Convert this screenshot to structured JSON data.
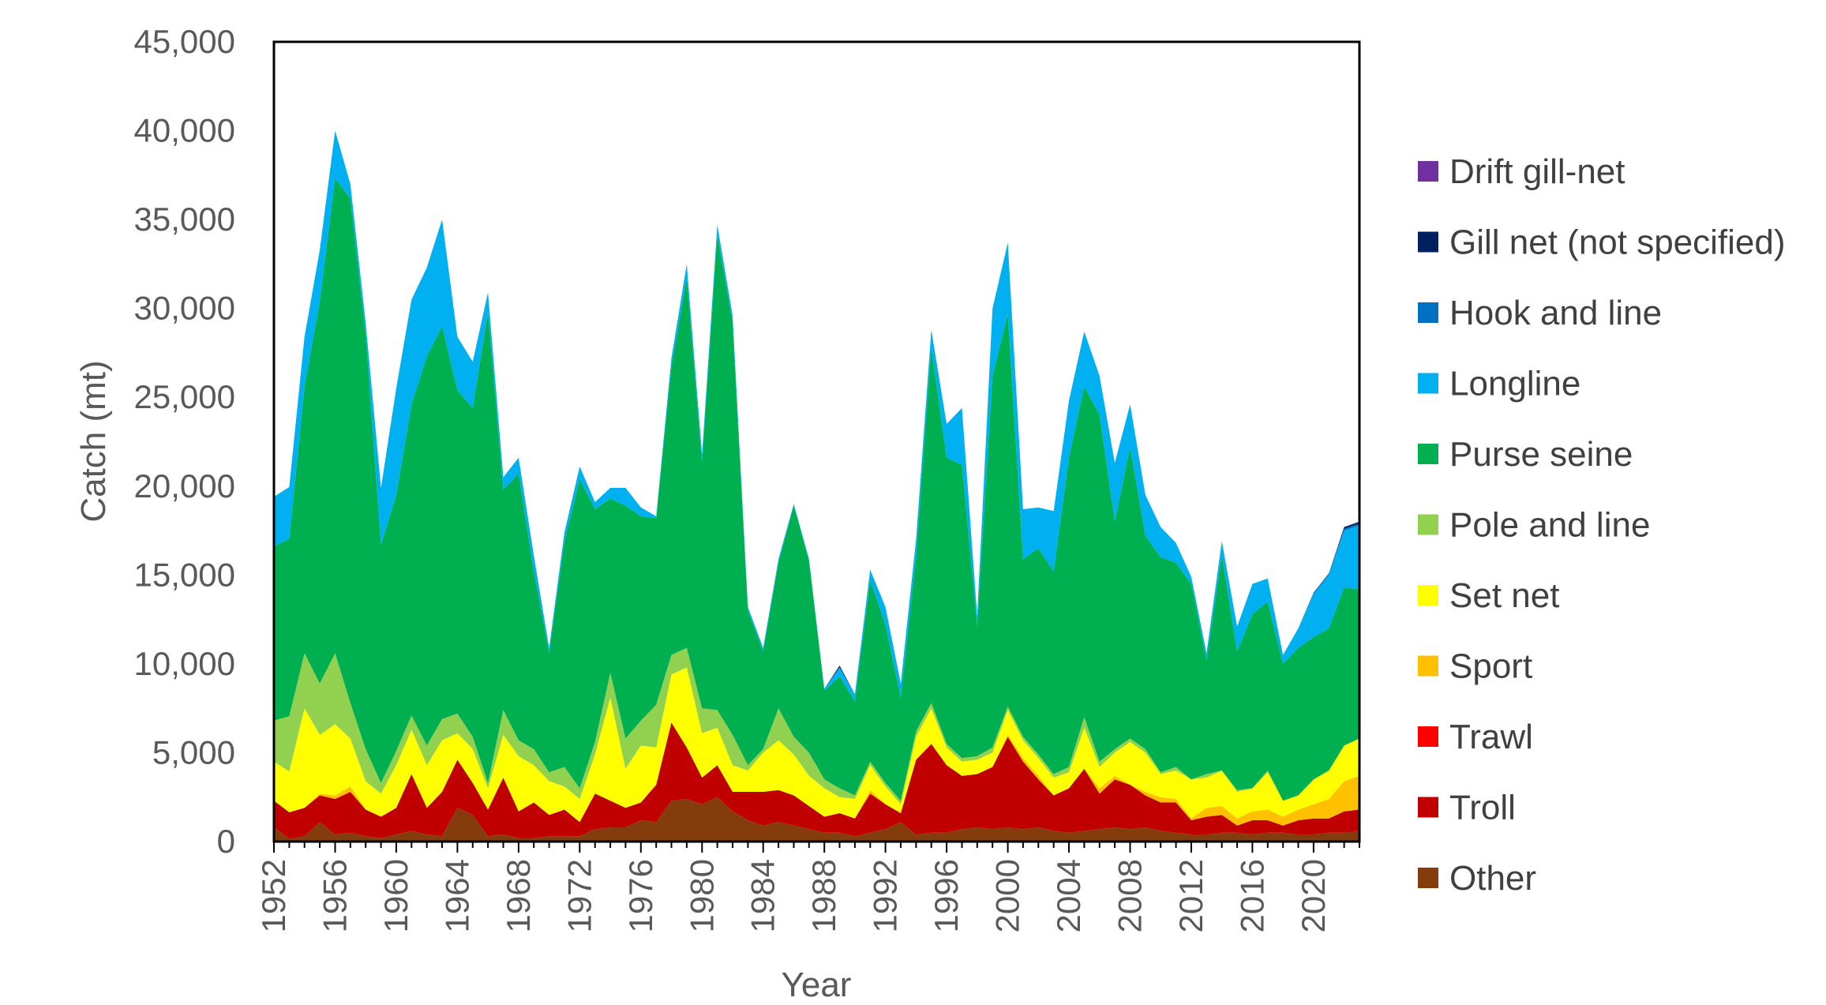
{
  "chart_data": {
    "type": "area",
    "stacked": true,
    "title": "",
    "xlabel": "Year",
    "ylabel": "Catch (mt)",
    "ylim": [
      0,
      45000
    ],
    "yticks": [
      0,
      5000,
      10000,
      15000,
      20000,
      25000,
      30000,
      35000,
      40000,
      45000
    ],
    "ytick_labels": [
      "0",
      "5,000",
      "10,000",
      "15,000",
      "20,000",
      "25,000",
      "30,000",
      "35,000",
      "40,000",
      "45,000"
    ],
    "xlim": [
      1952,
      2023
    ],
    "xticks": [
      1952,
      1956,
      1960,
      1964,
      1968,
      1972,
      1976,
      1980,
      1984,
      1988,
      1992,
      1996,
      2000,
      2004,
      2008,
      2012,
      2016,
      2020
    ],
    "xtick_labels": [
      "1952",
      "1956",
      "1960",
      "1964",
      "1968",
      "1972",
      "1976",
      "1980",
      "1984",
      "1988",
      "1992",
      "1996",
      "2000",
      "2004",
      "2008",
      "2012",
      "2016",
      "2020"
    ],
    "grid": false,
    "legend_position": "right",
    "x": [
      1952,
      1953,
      1954,
      1955,
      1956,
      1957,
      1958,
      1959,
      1960,
      1961,
      1962,
      1963,
      1964,
      1965,
      1966,
      1967,
      1968,
      1969,
      1970,
      1971,
      1972,
      1973,
      1974,
      1975,
      1976,
      1977,
      1978,
      1979,
      1980,
      1981,
      1982,
      1983,
      1984,
      1985,
      1986,
      1987,
      1988,
      1989,
      1990,
      1991,
      1992,
      1993,
      1994,
      1995,
      1996,
      1997,
      1998,
      1999,
      2000,
      2001,
      2002,
      2003,
      2004,
      2005,
      2006,
      2007,
      2008,
      2009,
      2010,
      2011,
      2012,
      2013,
      2014,
      2015,
      2016,
      2017,
      2018,
      2019,
      2020,
      2021,
      2022,
      2023
    ],
    "series": [
      {
        "name": "Other",
        "color": "#843C0C",
        "values": [
          800,
          150,
          300,
          1100,
          400,
          500,
          300,
          200,
          400,
          600,
          400,
          300,
          1900,
          1500,
          300,
          400,
          200,
          200,
          300,
          300,
          300,
          700,
          800,
          800,
          1200,
          1100,
          2300,
          2400,
          2100,
          2500,
          1700,
          1200,
          900,
          1100,
          900,
          700,
          500,
          500,
          300,
          500,
          700,
          1100,
          400,
          500,
          500,
          700,
          800,
          700,
          800,
          700,
          800,
          600,
          500,
          600,
          700,
          800,
          700,
          800,
          600,
          500,
          400,
          400,
          500,
          500,
          400,
          500,
          500,
          400,
          400,
          500,
          500,
          600
        ]
      },
      {
        "name": "Troll",
        "color": "#C00000",
        "values": [
          1500,
          1500,
          1600,
          1500,
          2000,
          2300,
          1500,
          1200,
          1500,
          3200,
          1500,
          2500,
          2700,
          1800,
          1500,
          3200,
          1500,
          2000,
          1200,
          1500,
          800,
          2000,
          1500,
          1100,
          1000,
          2100,
          4400,
          2900,
          1500,
          1800,
          1100,
          1600,
          1900,
          1800,
          1700,
          1300,
          900,
          1100,
          1000,
          2200,
          1400,
          500,
          4200,
          5000,
          3800,
          3000,
          3000,
          3500,
          5100,
          3800,
          2700,
          2000,
          2500,
          3500,
          2000,
          2700,
          2500,
          1800,
          1600,
          1700,
          800,
          1000,
          1000,
          400,
          800,
          700,
          400,
          800,
          900,
          800,
          1200,
          1200
        ]
      },
      {
        "name": "Trawl",
        "color": "#FF0000",
        "values": [
          0,
          0,
          0,
          0,
          0,
          0,
          0,
          0,
          0,
          0,
          0,
          0,
          0,
          0,
          0,
          0,
          0,
          0,
          0,
          0,
          0,
          0,
          0,
          0,
          0,
          0,
          0,
          0,
          0,
          0,
          0,
          0,
          0,
          0,
          0,
          0,
          0,
          0,
          0,
          0,
          0,
          0,
          0,
          0,
          0,
          0,
          0,
          0,
          0,
          0,
          0,
          0,
          0,
          0,
          0,
          0,
          0,
          0,
          0,
          0,
          0,
          0,
          0,
          0,
          0,
          0,
          0,
          0,
          0,
          0,
          0,
          0
        ]
      },
      {
        "name": "Sport",
        "color": "#FFC000",
        "values": [
          0,
          0,
          0,
          100,
          200,
          300,
          0,
          0,
          0,
          0,
          0,
          0,
          0,
          0,
          0,
          0,
          0,
          0,
          0,
          0,
          0,
          0,
          0,
          0,
          0,
          0,
          0,
          0,
          0,
          0,
          0,
          0,
          0,
          0,
          0,
          0,
          0,
          0,
          0,
          200,
          0,
          0,
          0,
          0,
          0,
          0,
          0,
          0,
          100,
          200,
          200,
          0,
          0,
          0,
          300,
          200,
          0,
          200,
          300,
          200,
          100,
          500,
          500,
          400,
          500,
          600,
          500,
          600,
          800,
          1100,
          1700,
          1900
        ]
      },
      {
        "name": "Set net",
        "color": "#FFFF00",
        "values": [
          2200,
          2300,
          5600,
          3300,
          4000,
          2700,
          1600,
          1300,
          2400,
          2500,
          2400,
          2900,
          1500,
          1900,
          1200,
          2400,
          3100,
          2100,
          1900,
          1300,
          1300,
          2200,
          5800,
          2200,
          3200,
          2100,
          2700,
          4500,
          2500,
          2100,
          1500,
          1200,
          2200,
          2800,
          2300,
          1700,
          1600,
          900,
          1100,
          1400,
          1000,
          500,
          1300,
          2000,
          1000,
          800,
          800,
          800,
          1400,
          1000,
          1000,
          1000,
          900,
          2300,
          1200,
          1300,
          2400,
          2200,
          1300,
          1600,
          2200,
          1700,
          2000,
          1500,
          1300,
          2100,
          900,
          800,
          1400,
          1600,
          2000,
          2100
        ]
      },
      {
        "name": "Pole and line",
        "color": "#92D050",
        "values": [
          2300,
          3100,
          3100,
          2900,
          4000,
          2000,
          1800,
          600,
          800,
          800,
          1100,
          1200,
          1100,
          700,
          300,
          1400,
          900,
          900,
          500,
          1100,
          600,
          700,
          1400,
          1700,
          1400,
          2400,
          1100,
          1100,
          1400,
          1000,
          1700,
          300,
          200,
          1800,
          1000,
          1300,
          500,
          500,
          200,
          200,
          200,
          200,
          300,
          300,
          200,
          200,
          200,
          300,
          200,
          200,
          200,
          200,
          300,
          600,
          300,
          200,
          200,
          200,
          100,
          200,
          0,
          200,
          0,
          100,
          0,
          100,
          0,
          0,
          0,
          0,
          0,
          0
        ]
      },
      {
        "name": "Purse seine",
        "color": "#00B050",
        "values": [
          9800,
          10000,
          15000,
          21500,
          26700,
          28400,
          23300,
          13400,
          14400,
          17500,
          21900,
          22100,
          18200,
          18500,
          26500,
          12400,
          15000,
          10000,
          6700,
          12700,
          17400,
          13100,
          9800,
          13100,
          11500,
          10500,
          16200,
          20800,
          13800,
          26700,
          23200,
          8700,
          5500,
          8200,
          13000,
          10800,
          5000,
          6300,
          5300,
          10200,
          8900,
          5800,
          9800,
          20000,
          16100,
          16500,
          7300,
          20900,
          22100,
          10000,
          11600,
          11400,
          17400,
          18600,
          19500,
          12800,
          16400,
          12000,
          12100,
          11500,
          11000,
          6400,
          12100,
          7800,
          9800,
          9500,
          7700,
          8300,
          8000,
          8000,
          8900,
          8400
        ]
      },
      {
        "name": "Longline",
        "color": "#00B0F0",
        "values": [
          2800,
          2900,
          2800,
          2900,
          2700,
          800,
          700,
          3200,
          6000,
          5900,
          5000,
          6000,
          3000,
          2600,
          1100,
          700,
          900,
          900,
          300,
          500,
          700,
          400,
          600,
          1000,
          500,
          100,
          500,
          800,
          500,
          600,
          400,
          200,
          200,
          200,
          100,
          100,
          100,
          500,
          400,
          600,
          1000,
          800,
          1000,
          1000,
          1900,
          3200,
          600,
          3800,
          4000,
          2800,
          2300,
          3400,
          3200,
          3100,
          2200,
          3300,
          2400,
          2300,
          1700,
          1100,
          400,
          400,
          800,
          1400,
          1700,
          1300,
          500,
          1100,
          2400,
          3000,
          3200,
          3600
        ]
      },
      {
        "name": "Hook and line",
        "color": "#0070C0",
        "values": [
          0,
          0,
          0,
          0,
          0,
          0,
          0,
          0,
          0,
          0,
          0,
          0,
          0,
          0,
          0,
          0,
          0,
          0,
          0,
          0,
          0,
          0,
          0,
          0,
          0,
          0,
          0,
          0,
          0,
          0,
          0,
          0,
          0,
          0,
          0,
          0,
          0,
          0,
          0,
          0,
          0,
          0,
          0,
          0,
          0,
          0,
          0,
          0,
          0,
          0,
          0,
          0,
          0,
          0,
          0,
          0,
          0,
          0,
          0,
          0,
          0,
          0,
          0,
          0,
          0,
          0,
          0,
          0,
          100,
          100,
          100,
          100
        ]
      },
      {
        "name": "Gill net (not specified)",
        "color": "#002060",
        "values": [
          0,
          0,
          0,
          0,
          0,
          0,
          0,
          0,
          0,
          0,
          0,
          0,
          0,
          0,
          0,
          0,
          0,
          0,
          0,
          0,
          0,
          0,
          0,
          0,
          0,
          0,
          0,
          0,
          0,
          0,
          0,
          0,
          0,
          0,
          0,
          0,
          0,
          100,
          0,
          0,
          0,
          0,
          0,
          0,
          0,
          0,
          0,
          0,
          0,
          0,
          0,
          0,
          0,
          0,
          0,
          0,
          0,
          0,
          0,
          0,
          0,
          0,
          0,
          0,
          0,
          0,
          0,
          0,
          0,
          0,
          100,
          100
        ]
      },
      {
        "name": "Drift gill-net",
        "color": "#7030A0",
        "values": [
          0,
          0,
          0,
          0,
          0,
          0,
          0,
          0,
          0,
          0,
          0,
          0,
          0,
          0,
          0,
          0,
          0,
          0,
          0,
          0,
          0,
          0,
          0,
          0,
          0,
          0,
          0,
          0,
          0,
          0,
          0,
          0,
          0,
          0,
          0,
          0,
          0,
          0,
          0,
          0,
          0,
          0,
          0,
          0,
          0,
          0,
          0,
          0,
          0,
          0,
          0,
          0,
          0,
          0,
          0,
          0,
          0,
          0,
          0,
          0,
          0,
          0,
          0,
          0,
          0,
          0,
          0,
          0,
          0,
          0,
          0,
          0
        ]
      }
    ]
  }
}
